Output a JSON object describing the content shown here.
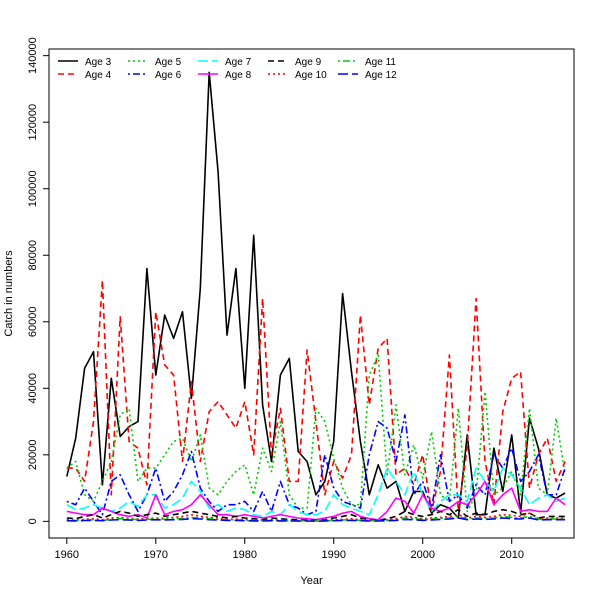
{
  "chart_data": {
    "type": "line",
    "xlabel": "Year",
    "ylabel": "Catch in numbers",
    "xlim": [
      1958,
      2017
    ],
    "ylim": [
      -5000,
      142000
    ],
    "xticks": [
      1960,
      1970,
      1980,
      1990,
      2000,
      2010
    ],
    "yticks": [
      0,
      20000,
      40000,
      60000,
      80000,
      100000,
      120000,
      140000
    ],
    "legend_position": "top-left",
    "x": [
      1960,
      1961,
      1962,
      1963,
      1964,
      1965,
      1966,
      1967,
      1968,
      1969,
      1970,
      1971,
      1972,
      1973,
      1974,
      1975,
      1976,
      1977,
      1978,
      1979,
      1980,
      1981,
      1982,
      1983,
      1984,
      1985,
      1986,
      1987,
      1988,
      1989,
      1990,
      1991,
      1992,
      1993,
      1994,
      1995,
      1996,
      1997,
      1998,
      1999,
      2000,
      2001,
      2002,
      2003,
      2004,
      2005,
      2006,
      2007,
      2008,
      2009,
      2010,
      2011,
      2012,
      2013,
      2014,
      2015,
      2016
    ],
    "series": [
      {
        "name": "Age 3",
        "color": "#000000",
        "dash": "solid",
        "values": [
          13500,
          25000,
          46000,
          51000,
          11000,
          43000,
          25500,
          28500,
          30000,
          76000,
          44000,
          62000,
          55000,
          63000,
          37000,
          70000,
          135000,
          105000,
          56000,
          76000,
          40000,
          86000,
          35000,
          18000,
          44000,
          49000,
          21000,
          18000,
          8000,
          12000,
          24000,
          68500,
          45000,
          24000,
          8000,
          17000,
          10000,
          12000,
          3000,
          9000,
          9000,
          2500,
          5000,
          4000,
          1000,
          26000,
          2000,
          2000,
          22000,
          9000,
          26000,
          2500,
          31000,
          22000,
          8000,
          7000,
          8500
        ]
      },
      {
        "name": "Age 4",
        "color": "#ff0000",
        "dash": "dashed",
        "values": [
          16000,
          16000,
          12000,
          30000,
          72500,
          8000,
          61500,
          24000,
          22000,
          11000,
          63000,
          47000,
          44000,
          18000,
          42000,
          18000,
          33000,
          36000,
          32000,
          28000,
          36000,
          20000,
          67000,
          20000,
          34000,
          12000,
          12000,
          51500,
          30000,
          8000,
          18000,
          13000,
          20000,
          62000,
          35000,
          52000,
          55000,
          14000,
          16000,
          11000,
          20000,
          3000,
          15000,
          50000,
          3000,
          22000,
          67000,
          18000,
          5000,
          33000,
          43000,
          45000,
          10000,
          20000,
          25000,
          12000,
          18000
        ]
      },
      {
        "name": "Age 5",
        "color": "#00cc00",
        "dash": "dotted",
        "values": [
          16000,
          18000,
          8000,
          6000,
          12000,
          18000,
          32000,
          34000,
          12000,
          16000,
          16000,
          20000,
          24000,
          25000,
          18000,
          26000,
          10000,
          8000,
          12000,
          15000,
          17000,
          8000,
          22000,
          15000,
          30000,
          8000,
          4000,
          4000,
          34000,
          30000,
          19000,
          10000,
          5000,
          5000,
          44000,
          50000,
          14000,
          35000,
          14000,
          23000,
          13000,
          27000,
          8000,
          6000,
          34000,
          3000,
          8000,
          39000,
          8000,
          10000,
          15000,
          8000,
          34000,
          10000,
          8000,
          31000,
          14000
        ]
      },
      {
        "name": "Age 6",
        "color": "#0000ff",
        "dash": "dashdot",
        "values": [
          6000,
          5000,
          10000,
          6000,
          2000,
          12000,
          14000,
          8000,
          3000,
          8000,
          16000,
          6000,
          9000,
          14000,
          21000,
          10000,
          6000,
          3000,
          5000,
          5000,
          6000,
          3000,
          9000,
          3000,
          12000,
          5000,
          4000,
          2000,
          3000,
          20000,
          10000,
          6000,
          5000,
          4000,
          20000,
          30000,
          28000,
          18000,
          32000,
          8000,
          12000,
          4000,
          20000,
          6000,
          8000,
          4000,
          11000,
          8000,
          20000,
          16000,
          22000,
          12000,
          15000,
          20000,
          8000,
          8000,
          16000
        ]
      },
      {
        "name": "Age 7",
        "color": "#00ffff",
        "dash": "longdash",
        "values": [
          5000,
          3500,
          4000,
          5000,
          4000,
          3000,
          4000,
          6000,
          4500,
          8000,
          8000,
          4000,
          5000,
          7000,
          12000,
          9000,
          4000,
          5000,
          3000,
          4000,
          3500,
          2000,
          1500,
          3000,
          2000,
          5000,
          3000,
          2000,
          2000,
          3000,
          8000,
          5000,
          4000,
          3000,
          2000,
          8000,
          16000,
          12000,
          8000,
          15000,
          8000,
          3000,
          6000,
          8000,
          8000,
          6000,
          16000,
          12000,
          9000,
          16000,
          14000,
          10000,
          5000,
          7000,
          8000,
          6000,
          7000
        ]
      },
      {
        "name": "Age 8",
        "color": "#ff00ff",
        "dash": "solid",
        "values": [
          3000,
          2500,
          2000,
          2000,
          4000,
          3000,
          2000,
          1500,
          2000,
          1000,
          8000,
          2000,
          3000,
          3500,
          5000,
          8000,
          5000,
          2000,
          2000,
          1500,
          2000,
          1500,
          1000,
          1500,
          2000,
          1500,
          1000,
          800,
          500,
          1000,
          1500,
          2500,
          3000,
          1500,
          800,
          500,
          3000,
          7000,
          6000,
          2500,
          8000,
          4000,
          3000,
          4000,
          6000,
          5000,
          8000,
          12000,
          5000,
          8000,
          10000,
          3000,
          3500,
          3000,
          3000,
          7000,
          5000
        ]
      },
      {
        "name": "Age 9",
        "color": "#000000",
        "dash": "dashed",
        "values": [
          1000,
          800,
          1500,
          2000,
          1000,
          2000,
          3000,
          2500,
          1500,
          2000,
          2500,
          1500,
          2000,
          2500,
          3000,
          2500,
          2000,
          1500,
          1000,
          1500,
          1000,
          800,
          500,
          1000,
          800,
          600,
          500,
          400,
          300,
          500,
          1000,
          1500,
          2000,
          1000,
          500,
          300,
          800,
          1500,
          3000,
          2000,
          1500,
          2000,
          3000,
          2000,
          3500,
          1500,
          2500,
          2000,
          3000,
          3500,
          3000,
          2000,
          2500,
          1000,
          1500,
          1500,
          1500
        ]
      },
      {
        "name": "Age 10",
        "color": "#ff0000",
        "dash": "dotted",
        "values": [
          500,
          400,
          600,
          800,
          500,
          1000,
          1200,
          900,
          700,
          800,
          1000,
          900,
          1200,
          1500,
          2000,
          1500,
          1200,
          1000,
          600,
          700,
          500,
          400,
          300,
          500,
          400,
          300,
          200,
          200,
          150,
          300,
          500,
          600,
          800,
          500,
          300,
          200,
          500,
          800,
          1500,
          1200,
          800,
          1000,
          1200,
          1500,
          2000,
          1000,
          1500,
          1200,
          1500,
          2000,
          1800,
          1500,
          2500,
          800,
          1000,
          1000,
          1000
        ]
      },
      {
        "name": "Age 11",
        "color": "#00cc00",
        "dash": "dashdot",
        "values": [
          300,
          250,
          350,
          500,
          300,
          600,
          800,
          700,
          500,
          600,
          700,
          600,
          800,
          900,
          1200,
          1000,
          800,
          600,
          400,
          500,
          300,
          250,
          200,
          300,
          250,
          200,
          150,
          150,
          100,
          200,
          300,
          400,
          500,
          300,
          200,
          150,
          300,
          500,
          1000,
          800,
          500,
          700,
          900,
          1000,
          1500,
          700,
          1000,
          900,
          1000,
          1500,
          1200,
          1000,
          1500,
          600,
          700,
          700,
          700
        ]
      },
      {
        "name": "Age 12",
        "color": "#0000ff",
        "dash": "longdash",
        "values": [
          200,
          150,
          250,
          300,
          200,
          400,
          500,
          400,
          300,
          400,
          500,
          400,
          500,
          600,
          800,
          700,
          500,
          400,
          300,
          300,
          200,
          150,
          100,
          200,
          150,
          100,
          100,
          100,
          50,
          100,
          200,
          300,
          300,
          200,
          100,
          100,
          200,
          300,
          600,
          500,
          300,
          400,
          600,
          700,
          1000,
          500,
          700,
          600,
          700,
          1000,
          800,
          700,
          1000,
          400,
          500,
          500,
          500
        ]
      }
    ]
  }
}
